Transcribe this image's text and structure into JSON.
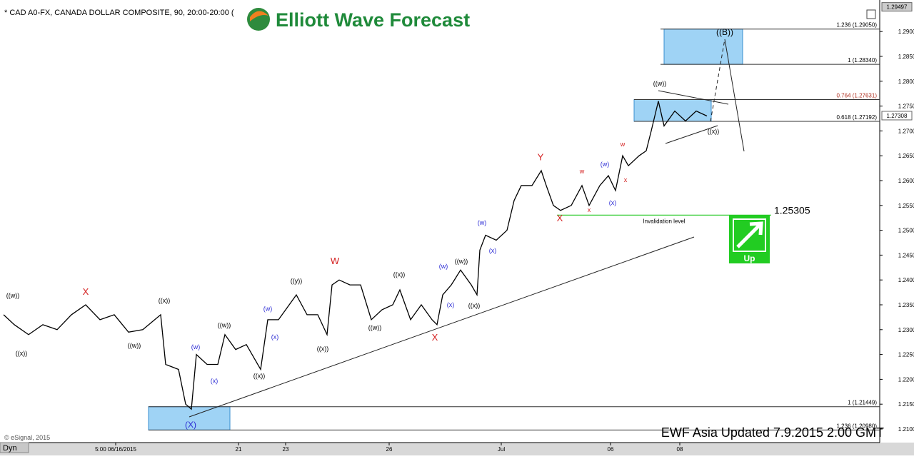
{
  "chart_data": {
    "type": "line",
    "title": "* CAD A0-FX, CANADA DOLLAR COMPOSITE, 90, 20:00-20:00 (",
    "logo": "Elliott Wave Forecast",
    "footer": "EWF Asia Updated 7.9.2015 2.00 GMT",
    "copyright": "© eSignal, 2015",
    "mode": "Dyn",
    "direction": "Up",
    "color": "#000000",
    "last_price": {
      "value": 1.27308,
      "label": "1.27308"
    },
    "top_price": {
      "value": 1.29497,
      "label": "1.29497"
    },
    "x": [
      0.5,
      2,
      4,
      6,
      8,
      10,
      12,
      14,
      16,
      18,
      20,
      22.5,
      23.2,
      25,
      26,
      26.8,
      27.5,
      29,
      30.5,
      31.5,
      33,
      34.5,
      36.5,
      37.5,
      39,
      40,
      41.5,
      43,
      44.5,
      45.8,
      46.5,
      47.5,
      49,
      50.5,
      52,
      53.5,
      55,
      56,
      57.5,
      59,
      60.5,
      61.2,
      62,
      63.2,
      64.5,
      66,
      66.8,
      67.2,
      68,
      69.5,
      71,
      72,
      73,
      74.5,
      75.8,
      76.5,
      77.5,
      78.5,
      80,
      81.5,
      82.5,
      84,
      85.2,
      86.2,
      87.2,
      88,
      89.5,
      90.5,
      91.2,
      92.2,
      93,
      94.5,
      96,
      97.5,
      99
    ],
    "values": [
      1.233,
      1.231,
      1.229,
      1.231,
      1.23,
      1.233,
      1.235,
      1.232,
      1.233,
      1.2295,
      1.23,
      1.233,
      1.223,
      1.222,
      1.215,
      1.214,
      1.225,
      1.223,
      1.223,
      1.229,
      1.226,
      1.227,
      1.222,
      1.232,
      1.232,
      1.234,
      1.237,
      1.233,
      1.233,
      1.229,
      1.239,
      1.24,
      1.239,
      1.239,
      1.232,
      1.234,
      1.235,
      1.238,
      1.232,
      1.235,
      1.232,
      1.231,
      1.237,
      1.239,
      1.242,
      1.239,
      1.237,
      1.246,
      1.249,
      1.248,
      1.25,
      1.256,
      1.259,
      1.259,
      1.262,
      1.259,
      1.255,
      1.254,
      1.255,
      1.259,
      1.255,
      1.259,
      1.261,
      1.258,
      1.265,
      1.263,
      1.265,
      1.266,
      1.27,
      1.276,
      1.271,
      1.274,
      1.272,
      1.274,
      1.273
    ],
    "xlim": [
      0,
      123.2
    ],
    "ylim": [
      1.2077,
      1.2952
    ],
    "xticks": [
      {
        "value": 16.2,
        "label": "5:00 06/16/2015"
      },
      {
        "value": 33.4,
        "label": "21"
      },
      {
        "value": 40,
        "label": "23"
      },
      {
        "value": 54.5,
        "label": "26"
      },
      {
        "value": 70.2,
        "label": "Jul"
      },
      {
        "value": 85.5,
        "label": "06"
      },
      {
        "value": 95.2,
        "label": "08"
      }
    ],
    "yticks": [
      {
        "value": 1.21,
        "label": "1.2100"
      },
      {
        "value": 1.215,
        "label": "1.2150"
      },
      {
        "value": 1.22,
        "label": "1.2200"
      },
      {
        "value": 1.225,
        "label": "1.2250"
      },
      {
        "value": 1.23,
        "label": "1.2300"
      },
      {
        "value": 1.235,
        "label": "1.2350"
      },
      {
        "value": 1.24,
        "label": "1.2400"
      },
      {
        "value": 1.245,
        "label": "1.2450"
      },
      {
        "value": 1.25,
        "label": "1.2500"
      },
      {
        "value": 1.255,
        "label": "1.2550"
      },
      {
        "value": 1.26,
        "label": "1.2600"
      },
      {
        "value": 1.265,
        "label": "1.2650"
      },
      {
        "value": 1.27,
        "label": "1.2700"
      },
      {
        "value": 1.275,
        "label": "1.2750"
      },
      {
        "value": 1.28,
        "label": "1.2800"
      },
      {
        "value": 1.285,
        "label": "1.2850"
      },
      {
        "value": 1.29,
        "label": "1.2900"
      }
    ],
    "fib_levels": [
      {
        "text": "1.236 (1.29050)",
        "value": 1.2905,
        "x0": 92.5
      },
      {
        "text": "1 (1.28340)",
        "value": 1.2834,
        "x0": 92.5
      },
      {
        "text": "0.764 (1.27631)",
        "value": 1.27631,
        "x0": 88.8
      },
      {
        "text": "0.618 (1.27192)",
        "value": 1.27192,
        "x0": 88.8
      },
      {
        "text": "1 (1.21449)",
        "value": 1.21449,
        "x0": 20.8
      },
      {
        "text": "1.236 (1.20980)",
        "value": 1.2098,
        "x0": 20.8
      }
    ],
    "zones": [
      {
        "x": [
          93,
          104
        ],
        "y": [
          1.2834,
          1.2905
        ]
      },
      {
        "x": [
          88.8,
          99.6
        ],
        "y": [
          1.27192,
          1.27631
        ]
      },
      {
        "x": [
          20.8,
          32.2
        ],
        "y": [
          1.2098,
          1.21449
        ]
      }
    ],
    "invalidation": {
      "text": "Invalidation level",
      "value": 1.25305,
      "value_label": "1.25305",
      "x": [
        78,
        108
      ]
    },
    "annotations": [
      {
        "text": "((w))",
        "x": 1.8,
        "y": 1.2364,
        "color": "#000000"
      },
      {
        "text": "((x))",
        "x": 3,
        "y": 1.2248,
        "color": "#000000"
      },
      {
        "text": "X",
        "x": 12,
        "y": 1.237,
        "color": "#d42020"
      },
      {
        "text": "((w))",
        "x": 18.8,
        "y": 1.2264,
        "color": "#000000"
      },
      {
        "text": "((x))",
        "x": 23,
        "y": 1.2354,
        "color": "#000000"
      },
      {
        "text": "(w)",
        "x": 27.4,
        "y": 1.2261,
        "color": "#2a2ad4"
      },
      {
        "text": "(x)",
        "x": 30,
        "y": 1.2193,
        "color": "#2a2ad4"
      },
      {
        "text": "(X)",
        "x": 26.7,
        "y": 1.2103,
        "color": "#2a2ad4"
      },
      {
        "text": "((w))",
        "x": 31.4,
        "y": 1.2305,
        "color": "#000000"
      },
      {
        "text": "((x))",
        "x": 36.3,
        "y": 1.2203,
        "color": "#000000"
      },
      {
        "text": "(w)",
        "x": 37.5,
        "y": 1.2338,
        "color": "#2a2ad4"
      },
      {
        "text": "(x)",
        "x": 38.5,
        "y": 1.2281,
        "color": "#2a2ad4"
      },
      {
        "text": "((y))",
        "x": 41.5,
        "y": 1.2394,
        "color": "#000000"
      },
      {
        "text": "((x))",
        "x": 45.2,
        "y": 1.2257,
        "color": "#000000"
      },
      {
        "text": "W",
        "x": 46.9,
        "y": 1.2432,
        "color": "#d42020"
      },
      {
        "text": "((w))",
        "x": 52.5,
        "y": 1.23,
        "color": "#000000"
      },
      {
        "text": "((x))",
        "x": 55.9,
        "y": 1.2407,
        "color": "#000000"
      },
      {
        "text": "X",
        "x": 60.9,
        "y": 1.2278,
        "color": "#d42020"
      },
      {
        "text": "(w)",
        "x": 62.1,
        "y": 1.2423,
        "color": "#2a2ad4"
      },
      {
        "text": "(x)",
        "x": 63.1,
        "y": 1.2346,
        "color": "#2a2ad4"
      },
      {
        "text": "((w))",
        "x": 64.6,
        "y": 1.2433,
        "color": "#000000"
      },
      {
        "text": "((x))",
        "x": 66.4,
        "y": 1.2344,
        "color": "#000000"
      },
      {
        "text": "(w)",
        "x": 67.5,
        "y": 1.2511,
        "color": "#2a2ad4"
      },
      {
        "text": "(x)",
        "x": 69,
        "y": 1.2455,
        "color": "#2a2ad4"
      },
      {
        "text": "Y",
        "x": 75.7,
        "y": 1.2641,
        "color": "#d42020"
      },
      {
        "text": "X",
        "x": 78.4,
        "y": 1.2518,
        "color": "#d42020"
      },
      {
        "text": "w",
        "x": 81.5,
        "y": 1.2614,
        "color": "#d42020"
      },
      {
        "text": "x",
        "x": 82.5,
        "y": 1.2537,
        "color": "#d42020"
      },
      {
        "text": "(w)",
        "x": 84.7,
        "y": 1.2629,
        "color": "#2a2ad4"
      },
      {
        "text": "(x)",
        "x": 85.8,
        "y": 1.2551,
        "color": "#2a2ad4"
      },
      {
        "text": "w",
        "x": 87.2,
        "y": 1.2669,
        "color": "#d42020"
      },
      {
        "text": "x",
        "x": 87.6,
        "y": 1.2597,
        "color": "#d42020"
      },
      {
        "text": "((w))",
        "x": 92.4,
        "y": 1.2791,
        "color": "#000000"
      },
      {
        "text": "((x))",
        "x": 99.9,
        "y": 1.2695,
        "color": "#000000"
      },
      {
        "text": "((B))",
        "x": 101.5,
        "y": 1.2893,
        "color": "#000000"
      }
    ]
  }
}
